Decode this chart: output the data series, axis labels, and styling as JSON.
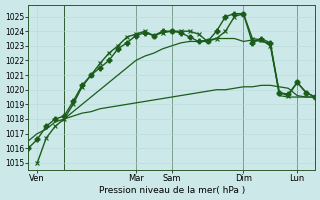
{
  "xlabel": "Pression niveau de la mer( hPa )",
  "ylim": [
    1014.5,
    1025.8
  ],
  "yticks": [
    1015,
    1016,
    1017,
    1018,
    1019,
    1020,
    1021,
    1022,
    1023,
    1024,
    1025
  ],
  "bg_color": "#cce8e8",
  "grid_minor_color": "#b8d8d8",
  "grid_major_color": "#a0c8c8",
  "line_color": "#1a5c1a",
  "xlim": [
    0,
    96
  ],
  "xtick_positions": [
    3,
    36,
    48,
    72,
    90
  ],
  "xtick_labels": [
    "Ven",
    "Mar",
    "Sam",
    "Dim",
    "Lun"
  ],
  "vline_x": [
    12,
    36,
    48,
    72,
    90
  ],
  "series": [
    {
      "x": [
        0,
        3,
        6,
        9,
        12,
        15,
        18,
        21,
        24,
        27,
        30,
        33,
        36,
        39,
        42,
        45,
        48,
        51,
        54,
        57,
        60,
        63,
        66,
        69,
        72,
        75,
        78,
        81,
        84,
        87,
        90,
        93,
        96
      ],
      "y": [
        1016.5,
        1017.0,
        1017.3,
        1017.8,
        1018.0,
        1018.2,
        1018.4,
        1018.5,
        1018.7,
        1018.8,
        1018.9,
        1019.0,
        1019.1,
        1019.2,
        1019.3,
        1019.4,
        1019.5,
        1019.6,
        1019.7,
        1019.8,
        1019.9,
        1020.0,
        1020.0,
        1020.1,
        1020.2,
        1020.2,
        1020.3,
        1020.3,
        1020.2,
        1020.1,
        1019.6,
        1019.5,
        1019.5
      ],
      "marker": null,
      "lw": 0.9
    },
    {
      "x": [
        12,
        15,
        18,
        21,
        24,
        27,
        30,
        33,
        36,
        39,
        42,
        45,
        48,
        51,
        54,
        57,
        60,
        63,
        66,
        69,
        72,
        75,
        78,
        81,
        84,
        87,
        90,
        93,
        96
      ],
      "y": [
        1018.0,
        1018.5,
        1019.0,
        1019.5,
        1020.0,
        1020.5,
        1021.0,
        1021.5,
        1022.0,
        1022.3,
        1022.5,
        1022.8,
        1023.0,
        1023.2,
        1023.3,
        1023.3,
        1023.4,
        1023.5,
        1023.5,
        1023.5,
        1023.3,
        1023.4,
        1023.3,
        1023.2,
        1019.6,
        1019.5,
        1019.5,
        1019.5,
        1019.5
      ],
      "marker": null,
      "lw": 0.9
    },
    {
      "x": [
        3,
        6,
        9,
        12,
        15,
        18,
        21,
        24,
        27,
        30,
        33,
        36,
        39,
        42,
        45,
        48,
        51,
        54,
        57,
        60,
        63,
        66,
        69,
        72,
        75,
        78,
        81,
        84,
        87,
        90,
        93,
        96
      ],
      "y": [
        1015.0,
        1016.7,
        1017.5,
        1018.0,
        1019.0,
        1020.2,
        1021.0,
        1021.8,
        1022.5,
        1023.0,
        1023.6,
        1023.8,
        1024.0,
        1023.7,
        1023.9,
        1024.0,
        1024.0,
        1024.0,
        1023.8,
        1023.3,
        1023.5,
        1024.0,
        1025.0,
        1025.2,
        1023.5,
        1023.4,
        1023.0,
        1019.8,
        1019.6,
        1020.5,
        1019.8,
        1019.5
      ],
      "marker": "x",
      "markersize": 3.5,
      "lw": 1.0
    },
    {
      "x": [
        0,
        3,
        6,
        9,
        12,
        15,
        18,
        21,
        24,
        27,
        30,
        33,
        36,
        39,
        42,
        45,
        48,
        51,
        54,
        57,
        60,
        63,
        66,
        69,
        72,
        75,
        78,
        81,
        84,
        87,
        90,
        93,
        96
      ],
      "y": [
        1016.0,
        1016.6,
        1017.5,
        1018.0,
        1018.2,
        1019.2,
        1020.3,
        1021.0,
        1021.5,
        1022.0,
        1022.8,
        1023.2,
        1023.7,
        1023.9,
        1023.7,
        1024.0,
        1024.0,
        1023.9,
        1023.6,
        1023.3,
        1023.3,
        1024.0,
        1025.0,
        1025.2,
        1025.2,
        1023.2,
        1023.5,
        1023.2,
        1019.8,
        1019.7,
        1020.5,
        1019.8,
        1019.5
      ],
      "marker": "P",
      "markersize": 3.5,
      "lw": 1.0
    }
  ]
}
